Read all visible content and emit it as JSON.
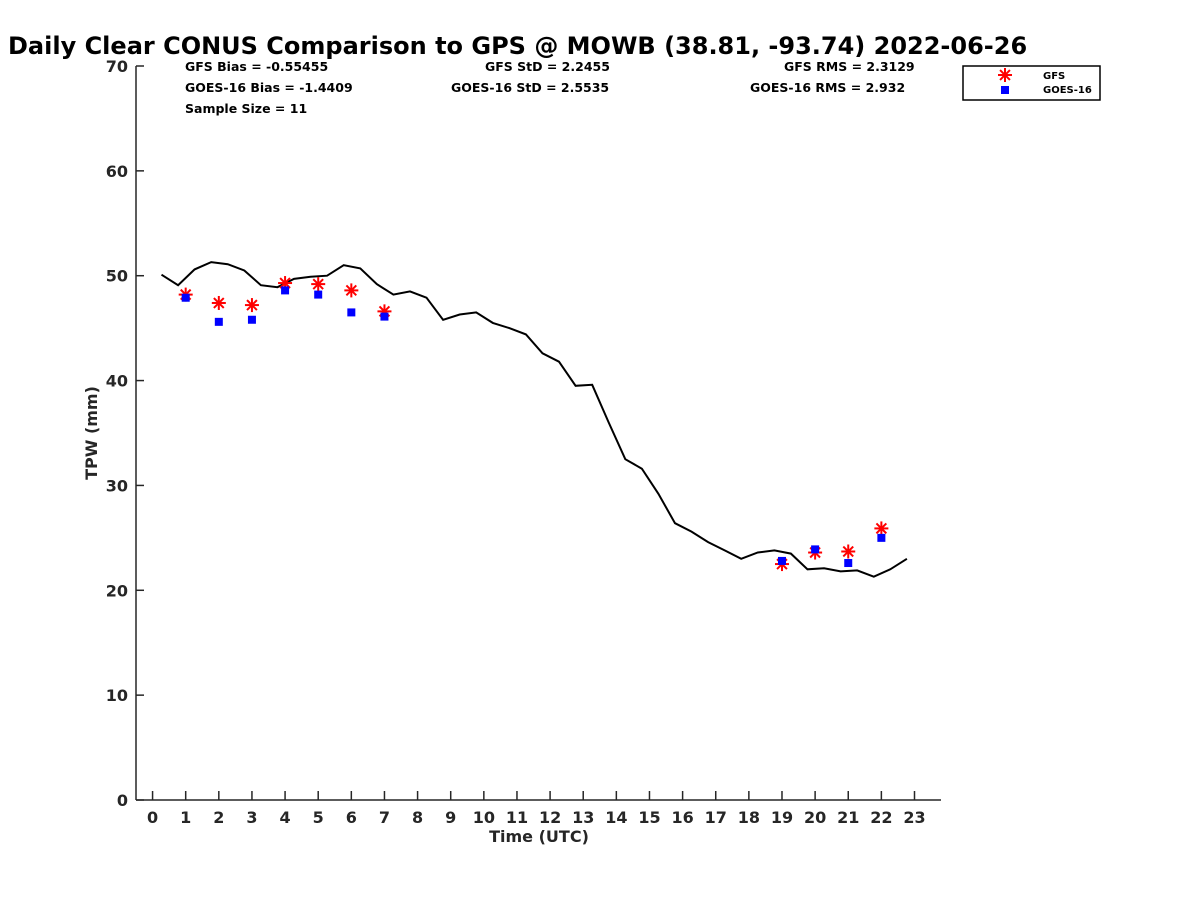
{
  "chart_data": {
    "type": "scatter",
    "title": "Daily Clear CONUS Comparison to GPS @ MOWB (38.81, -93.74) 2022-06-26",
    "xlabel": "Time (UTC)",
    "ylabel": "TPW (mm)",
    "xlim": [
      -0.5,
      23.8
    ],
    "ylim": [
      0,
      70
    ],
    "xticks": [
      0,
      1,
      2,
      3,
      4,
      5,
      6,
      7,
      8,
      9,
      10,
      11,
      12,
      13,
      14,
      15,
      16,
      17,
      18,
      19,
      20,
      21,
      22,
      23
    ],
    "yticks": [
      0,
      10,
      20,
      30,
      40,
      50,
      60,
      70
    ],
    "grid": false,
    "legend_position": "top-right",
    "stats": {
      "gfs_bias": "GFS Bias = -0.55455",
      "gfs_std": "GFS StD = 2.2455",
      "gfs_rms": "GFS RMS = 2.3129",
      "goes_bias": "GOES-16 Bias = -1.4409",
      "goes_std": "GOES-16 StD = 2.5535",
      "goes_rms": "GOES-16 RMS = 2.932",
      "sample_size": "Sample Size = 11"
    },
    "series": [
      {
        "type": "line",
        "color": "#000000",
        "x": [
          0.27,
          0.77,
          1.27,
          1.77,
          2.27,
          2.77,
          3.27,
          3.77,
          4.27,
          4.77,
          5.27,
          5.77,
          6.27,
          6.77,
          7.27,
          7.77,
          8.27,
          8.77,
          9.27,
          9.77,
          10.27,
          10.77,
          11.27,
          11.77,
          12.27,
          12.77,
          13.27,
          13.77,
          14.27,
          14.77,
          15.27,
          15.77,
          16.27,
          16.77,
          17.27,
          17.77,
          18.27,
          18.77,
          19.27,
          19.77,
          20.27,
          20.77,
          21.27,
          21.77,
          22.27,
          22.77
        ],
        "y": [
          50.1,
          49.1,
          50.6,
          51.3,
          51.1,
          50.5,
          49.1,
          48.9,
          49.7,
          49.9,
          50.0,
          51.0,
          50.7,
          49.2,
          48.2,
          48.5,
          47.9,
          45.8,
          46.3,
          46.5,
          45.5,
          45.0,
          44.4,
          42.6,
          41.8,
          39.5,
          39.6,
          36.0,
          32.5,
          31.6,
          29.2,
          26.4,
          25.6,
          24.6,
          23.8,
          23.0,
          23.6,
          23.8,
          23.5,
          22.0,
          22.1,
          21.8,
          21.9,
          21.3,
          22.0,
          23.0
        ]
      },
      {
        "name": "GFS",
        "type": "scatter",
        "marker": "asterisk",
        "color": "#ff0000",
        "x": [
          1,
          2,
          3,
          4,
          5,
          6,
          7,
          19,
          20,
          21,
          22
        ],
        "y": [
          48.2,
          47.4,
          47.2,
          49.3,
          49.2,
          48.6,
          46.6,
          22.5,
          23.6,
          23.7,
          25.9
        ]
      },
      {
        "name": "GOES-16",
        "type": "scatter",
        "marker": "square",
        "color": "#0000ff",
        "x": [
          1,
          2,
          3,
          4,
          5,
          6,
          7,
          19,
          20,
          21,
          22
        ],
        "y": [
          47.9,
          45.6,
          45.8,
          48.6,
          48.2,
          46.5,
          46.1,
          22.8,
          23.9,
          22.6,
          25.0
        ]
      }
    ]
  }
}
